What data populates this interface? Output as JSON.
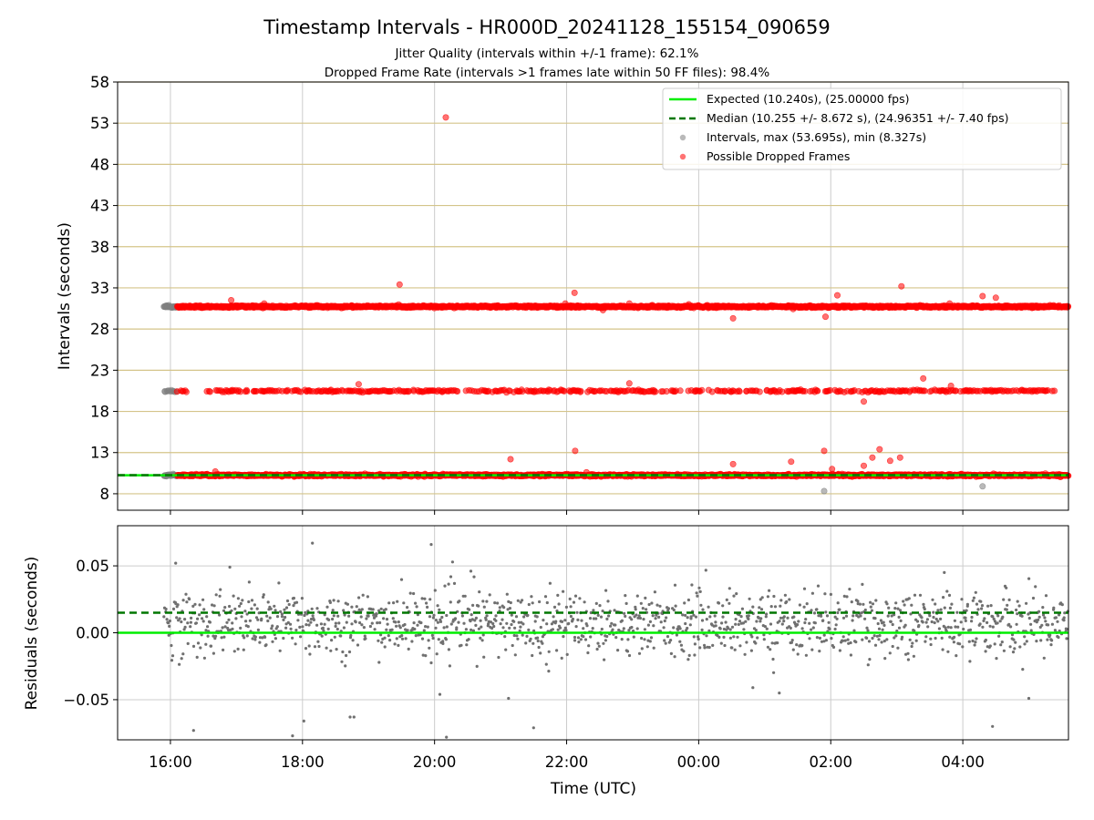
{
  "title": "Timestamp Intervals - HR000D_20241128_155154_090659",
  "subtitle_1": "Jitter Quality (intervals within +/-1 frame): 62.1%",
  "subtitle_2": "Dropped Frame Rate (intervals >1 frames late within 50 FF files): 98.4%",
  "colors": {
    "expected": "#00ee00",
    "median": "#007700",
    "intervals": "#808080",
    "dropped": "#ff0000",
    "grid_top": "#d4c48a",
    "grid_x": "#cccccc",
    "grid_bottom": "#cccccc",
    "residuals": "#707070"
  },
  "chart_data": [
    {
      "type": "scatter",
      "panel": "intervals",
      "ylabel": "Intervals (seconds)",
      "xlabel": "",
      "x_ticks": [
        "16:00",
        "18:00",
        "20:00",
        "22:00",
        "00:00",
        "02:00",
        "04:00"
      ],
      "x_tick_hours": [
        16,
        18,
        20,
        22,
        24,
        26,
        28
      ],
      "x_range_hours": [
        15.2,
        29.6
      ],
      "ylim": [
        6,
        58
      ],
      "y_ticks": [
        8,
        13,
        18,
        23,
        28,
        33,
        38,
        43,
        48,
        53,
        58
      ],
      "grid": true,
      "legend_position": "top-right",
      "legend": [
        "Expected (10.240s), (25.00000 fps)",
        "Median (10.255 +/- 8.672 s), (24.96351 +/- 7.40 fps)",
        "Intervals, max (53.695s), min (8.327s)",
        "Possible Dropped Frames"
      ],
      "expected_interval": 10.24,
      "median_interval": 10.255,
      "bands": [
        {
          "series": "intervals",
          "y": 10.24,
          "x_from": 15.9,
          "x_to": 16.1
        },
        {
          "series": "dropped",
          "y": 10.24,
          "x_from": 16.1,
          "x_to": 29.6
        },
        {
          "series": "intervals",
          "y": 20.48,
          "x_from": 15.9,
          "x_to": 16.1
        },
        {
          "series": "dropped",
          "y": 20.48,
          "x_from": 16.1,
          "x_to": 29.4
        },
        {
          "series": "intervals",
          "y": 30.72,
          "x_from": 15.9,
          "x_to": 16.1
        },
        {
          "series": "dropped",
          "y": 30.72,
          "x_from": 16.1,
          "x_to": 29.6
        }
      ],
      "outliers": [
        {
          "series": "dropped",
          "x": 20.17,
          "y": 53.695
        },
        {
          "series": "dropped",
          "x": 19.47,
          "y": 33.4
        },
        {
          "series": "dropped",
          "x": 16.92,
          "y": 31.5
        },
        {
          "series": "dropped",
          "x": 17.42,
          "y": 31.1
        },
        {
          "series": "dropped",
          "x": 22.12,
          "y": 32.4
        },
        {
          "series": "dropped",
          "x": 21.98,
          "y": 31.1
        },
        {
          "series": "dropped",
          "x": 22.55,
          "y": 30.3
        },
        {
          "series": "dropped",
          "x": 22.95,
          "y": 31.1
        },
        {
          "series": "dropped",
          "x": 23.3,
          "y": 30.9
        },
        {
          "series": "dropped",
          "x": 23.85,
          "y": 31.0
        },
        {
          "series": "dropped",
          "x": 24.52,
          "y": 29.3
        },
        {
          "series": "dropped",
          "x": 25.92,
          "y": 29.5
        },
        {
          "series": "dropped",
          "x": 26.1,
          "y": 32.1
        },
        {
          "series": "dropped",
          "x": 27.07,
          "y": 33.2
        },
        {
          "series": "dropped",
          "x": 27.8,
          "y": 31.1
        },
        {
          "series": "dropped",
          "x": 28.3,
          "y": 32.0
        },
        {
          "series": "dropped",
          "x": 28.5,
          "y": 31.8
        },
        {
          "series": "dropped",
          "x": 18.85,
          "y": 21.3
        },
        {
          "series": "dropped",
          "x": 22.95,
          "y": 21.4
        },
        {
          "series": "dropped",
          "x": 26.5,
          "y": 19.2
        },
        {
          "series": "dropped",
          "x": 27.4,
          "y": 22.0
        },
        {
          "series": "dropped",
          "x": 27.82,
          "y": 21.1
        },
        {
          "series": "dropped",
          "x": 21.15,
          "y": 12.2
        },
        {
          "series": "dropped",
          "x": 22.13,
          "y": 13.2
        },
        {
          "series": "dropped",
          "x": 22.3,
          "y": 10.6
        },
        {
          "series": "dropped",
          "x": 16.68,
          "y": 10.7
        },
        {
          "series": "dropped",
          "x": 24.52,
          "y": 11.6
        },
        {
          "series": "dropped",
          "x": 25.4,
          "y": 11.9
        },
        {
          "series": "dropped",
          "x": 25.9,
          "y": 13.2
        },
        {
          "series": "dropped",
          "x": 26.02,
          "y": 11.0
        },
        {
          "series": "dropped",
          "x": 26.5,
          "y": 11.4
        },
        {
          "series": "dropped",
          "x": 26.63,
          "y": 12.4
        },
        {
          "series": "dropped",
          "x": 26.74,
          "y": 13.4
        },
        {
          "series": "dropped",
          "x": 26.9,
          "y": 12.0
        },
        {
          "series": "dropped",
          "x": 27.05,
          "y": 12.4
        },
        {
          "series": "intervals",
          "x": 25.9,
          "y": 8.327
        },
        {
          "series": "intervals",
          "x": 28.3,
          "y": 8.9
        }
      ]
    },
    {
      "type": "scatter",
      "panel": "residuals",
      "ylabel": "Residuals (seconds)",
      "xlabel": "Time (UTC)",
      "x_ticks": [
        "16:00",
        "18:00",
        "20:00",
        "22:00",
        "00:00",
        "02:00",
        "04:00"
      ],
      "x_tick_hours": [
        16,
        18,
        20,
        22,
        24,
        26,
        28
      ],
      "x_range_hours": [
        15.2,
        29.6
      ],
      "ylim": [
        -0.08,
        0.08
      ],
      "y_ticks": [
        0.05,
        0.0,
        -0.05
      ],
      "y_tick_labels": [
        "0.05",
        "0.00",
        "−0.05"
      ],
      "grid": true,
      "expected_residual": 0.0,
      "median_residual": 0.015,
      "residual_center": 0.007,
      "residual_spread": 0.012,
      "x_from": 15.9,
      "x_to": 29.6,
      "outliers": [
        {
          "x": 16.08,
          "y": 0.052
        },
        {
          "x": 16.35,
          "y": -0.073
        },
        {
          "x": 16.9,
          "y": 0.049
        },
        {
          "x": 17.85,
          "y": -0.077
        },
        {
          "x": 18.15,
          "y": 0.067
        },
        {
          "x": 18.02,
          "y": -0.066
        },
        {
          "x": 18.72,
          "y": -0.063
        },
        {
          "x": 18.78,
          "y": -0.063
        },
        {
          "x": 19.95,
          "y": 0.066
        },
        {
          "x": 20.08,
          "y": -0.046
        },
        {
          "x": 20.18,
          "y": -0.078
        },
        {
          "x": 20.55,
          "y": 0.046
        },
        {
          "x": 21.12,
          "y": -0.049
        },
        {
          "x": 21.5,
          "y": -0.071
        },
        {
          "x": 24.82,
          "y": -0.041
        },
        {
          "x": 25.22,
          "y": -0.045
        },
        {
          "x": 27.72,
          "y": 0.045
        },
        {
          "x": 28.45,
          "y": -0.07
        },
        {
          "x": 29.0,
          "y": -0.049
        }
      ]
    }
  ]
}
